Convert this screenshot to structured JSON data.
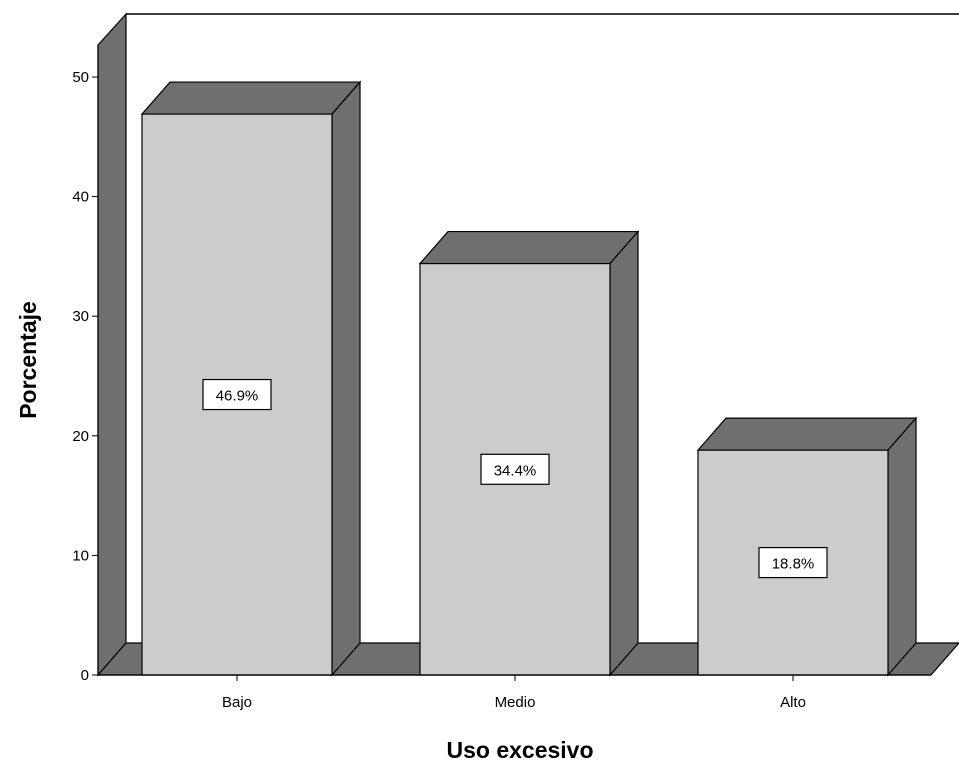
{
  "chart_data": {
    "type": "bar",
    "style": "3d",
    "categories": [
      "Bajo",
      "Medio",
      "Alto"
    ],
    "values": [
      46.9,
      34.4,
      18.8
    ],
    "value_labels": [
      "46.9%",
      "34.4%",
      "18.8%"
    ],
    "xlabel": "Uso excesivo",
    "ylabel": "Porcentaje",
    "ylim": [
      0,
      50
    ],
    "yticks": [
      "0",
      "10",
      "20",
      "30",
      "40",
      "50"
    ],
    "grid": false,
    "legend": "none",
    "colors": {
      "bar_front": "#cccccc",
      "bar_side": "#6f6f6f",
      "bar_top": "#6f6f6f",
      "floor": "#6f6f6f",
      "wall": "#ffffff",
      "stroke": "#000000"
    }
  }
}
